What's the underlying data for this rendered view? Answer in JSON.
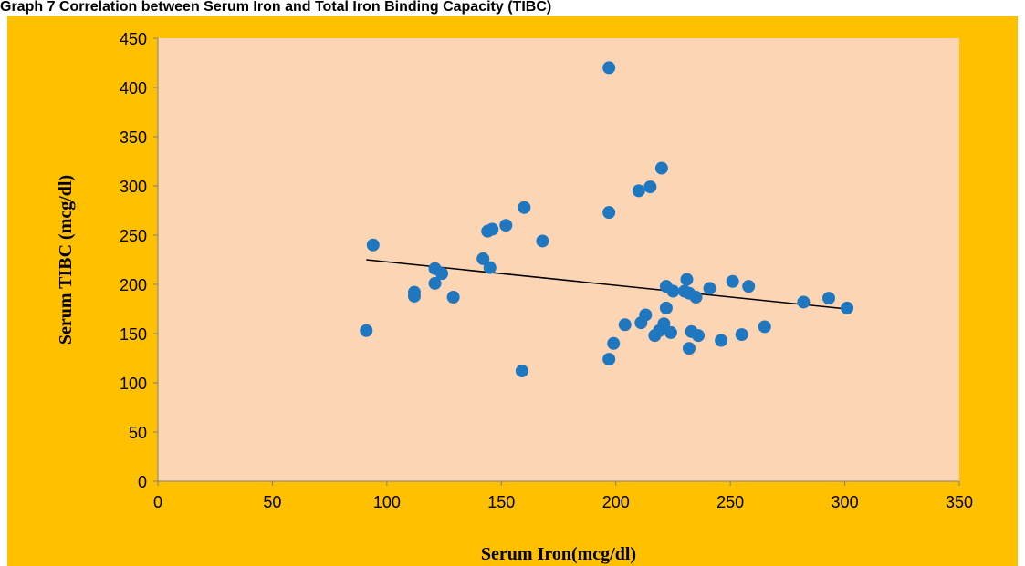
{
  "chart_data": {
    "type": "scatter",
    "title_clipped": "Graph 7 Correlation between Serum Iron and Total Iron Binding Capacity (TIBC)",
    "xlabel": "Serum  Iron(mcg/dl)",
    "ylabel": "Serum TIBC (mcg/dl)",
    "xlim": [
      0,
      350
    ],
    "ylim": [
      0,
      450
    ],
    "xticks": [
      0,
      50,
      100,
      150,
      200,
      250,
      300,
      350
    ],
    "yticks": [
      0,
      50,
      100,
      150,
      200,
      250,
      300,
      350,
      400,
      450
    ],
    "grid": false,
    "legend": "none",
    "colors": {
      "outer": "#FFC000",
      "plot": "#FCD5B5",
      "point": "#1F77C0",
      "trend": "#000000"
    },
    "points": [
      {
        "x": 91,
        "y": 153
      },
      {
        "x": 94,
        "y": 240
      },
      {
        "x": 112,
        "y": 192
      },
      {
        "x": 112,
        "y": 188
      },
      {
        "x": 121,
        "y": 216
      },
      {
        "x": 121,
        "y": 201
      },
      {
        "x": 124,
        "y": 211
      },
      {
        "x": 129,
        "y": 187
      },
      {
        "x": 142,
        "y": 226
      },
      {
        "x": 144,
        "y": 254
      },
      {
        "x": 145,
        "y": 217
      },
      {
        "x": 146,
        "y": 256
      },
      {
        "x": 152,
        "y": 260
      },
      {
        "x": 159,
        "y": 112
      },
      {
        "x": 160,
        "y": 278
      },
      {
        "x": 168,
        "y": 244
      },
      {
        "x": 197,
        "y": 420
      },
      {
        "x": 197,
        "y": 273
      },
      {
        "x": 197,
        "y": 124
      },
      {
        "x": 199,
        "y": 140
      },
      {
        "x": 204,
        "y": 159
      },
      {
        "x": 210,
        "y": 295
      },
      {
        "x": 211,
        "y": 161
      },
      {
        "x": 213,
        "y": 169
      },
      {
        "x": 215,
        "y": 299
      },
      {
        "x": 217,
        "y": 148
      },
      {
        "x": 219,
        "y": 153
      },
      {
        "x": 220,
        "y": 318
      },
      {
        "x": 221,
        "y": 160
      },
      {
        "x": 222,
        "y": 176
      },
      {
        "x": 222,
        "y": 198
      },
      {
        "x": 224,
        "y": 151
      },
      {
        "x": 225,
        "y": 193
      },
      {
        "x": 230,
        "y": 193
      },
      {
        "x": 231,
        "y": 205
      },
      {
        "x": 232,
        "y": 191
      },
      {
        "x": 232,
        "y": 135
      },
      {
        "x": 233,
        "y": 152
      },
      {
        "x": 235,
        "y": 187
      },
      {
        "x": 236,
        "y": 148
      },
      {
        "x": 241,
        "y": 196
      },
      {
        "x": 246,
        "y": 143
      },
      {
        "x": 251,
        "y": 203
      },
      {
        "x": 255,
        "y": 149
      },
      {
        "x": 258,
        "y": 198
      },
      {
        "x": 265,
        "y": 157
      },
      {
        "x": 282,
        "y": 182
      },
      {
        "x": 293,
        "y": 186
      },
      {
        "x": 301,
        "y": 176
      }
    ],
    "trendline": {
      "x": [
        91,
        301
      ],
      "y": [
        225,
        175
      ]
    }
  }
}
